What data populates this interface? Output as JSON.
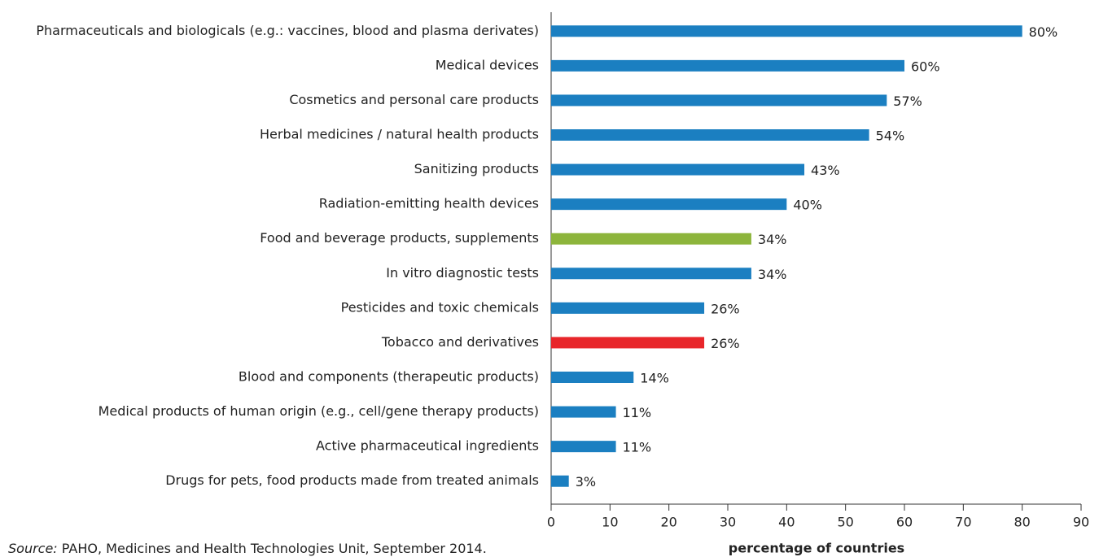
{
  "chart_data": {
    "type": "hbar",
    "categories": [
      "Pharmaceuticals and biologicals (e.g.: vaccines, blood and plasma derivates)",
      "Medical devices",
      "Cosmetics and personal care products",
      "Herbal medicines / natural health products",
      "Sanitizing products",
      "Radiation-emitting health devices",
      "Food and beverage products, supplements",
      "In vitro diagnostic tests",
      "Pesticides and toxic chemicals",
      "Tobacco and derivatives",
      "Blood and components (therapeutic products)",
      "Medical products of human origin (e.g., cell/gene therapy products)",
      "Active pharmaceutical ingredients",
      "Drugs for pets, food products made from treated animals"
    ],
    "values": [
      80,
      60,
      57,
      54,
      43,
      40,
      34,
      34,
      26,
      26,
      14,
      11,
      11,
      3
    ],
    "value_labels": [
      "80%",
      "60%",
      "57%",
      "54%",
      "43%",
      "40%",
      "34%",
      "34%",
      "26%",
      "26%",
      "14%",
      "11%",
      "11%",
      "3%"
    ],
    "colors": [
      "#1b7fc1",
      "#1b7fc1",
      "#1b7fc1",
      "#1b7fc1",
      "#1b7fc1",
      "#1b7fc1",
      "#8db53c",
      "#1b7fc1",
      "#1b7fc1",
      "#e8262a",
      "#1b7fc1",
      "#1b7fc1",
      "#1b7fc1",
      "#1b7fc1"
    ],
    "xlim": [
      0,
      90
    ],
    "xticks": [
      0,
      10,
      20,
      30,
      40,
      50,
      60,
      70,
      80,
      90
    ],
    "xlabel": "percentage of countries",
    "source_label": "Source:",
    "source_text": "PAHO, Medicines and Health Technologies Unit, September 2014."
  }
}
